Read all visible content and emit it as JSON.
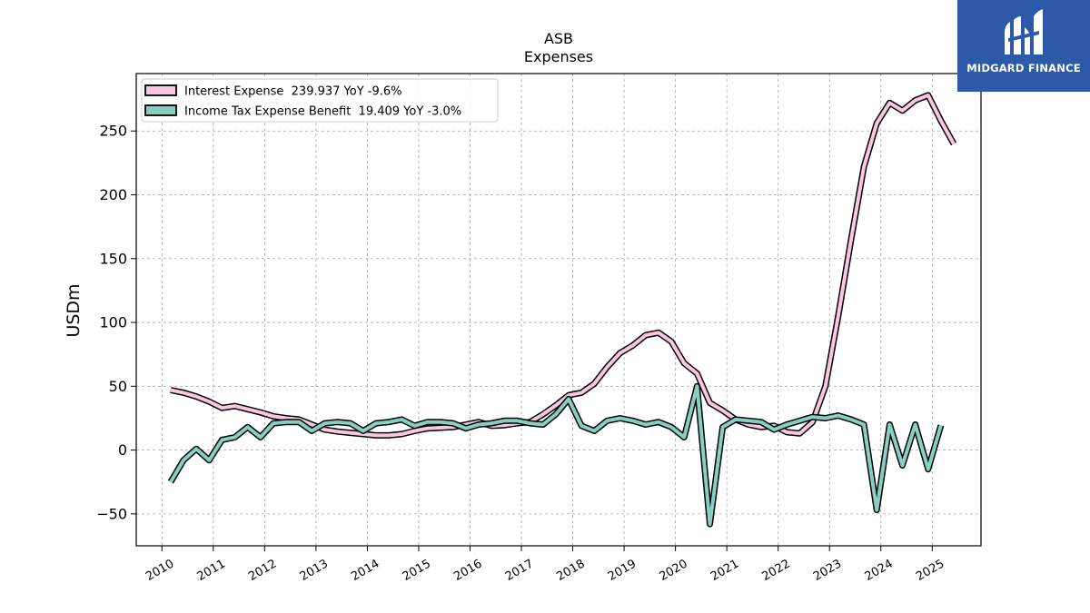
{
  "chart_data": {
    "type": "line",
    "title": "ASB",
    "subtitle": "Expenses",
    "ylabel": "USDm",
    "xlabel": "",
    "ylim": [
      -75,
      295
    ],
    "xlim": [
      2009.5,
      2025.95
    ],
    "yticks": [
      -50,
      0,
      50,
      100,
      150,
      200,
      250
    ],
    "ytick_labels": [
      "−50",
      "0",
      "50",
      "100",
      "150",
      "200",
      "250"
    ],
    "xticks": [
      2010,
      2011,
      2012,
      2013,
      2014,
      2015,
      2016,
      2017,
      2018,
      2019,
      2020,
      2021,
      2022,
      2023,
      2024,
      2025
    ],
    "xtick_labels": [
      "2010",
      "2011",
      "2012",
      "2013",
      "2014",
      "2015",
      "2016",
      "2017",
      "2018",
      "2019",
      "2020",
      "2021",
      "2022",
      "2023",
      "2024",
      "2025"
    ],
    "grid": true,
    "legend_position": "upper-left",
    "series": [
      {
        "name": "Interest Expense  239.937 YoY -9.6%",
        "color": "#f9c7df",
        "points": [
          [
            2010.17,
            47
          ],
          [
            2010.42,
            45
          ],
          [
            2010.67,
            42
          ],
          [
            2010.92,
            38
          ],
          [
            2011.17,
            33
          ],
          [
            2011.42,
            34.5
          ],
          [
            2011.67,
            32
          ],
          [
            2011.92,
            29.5
          ],
          [
            2012.17,
            26.5
          ],
          [
            2012.42,
            25
          ],
          [
            2012.67,
            24
          ],
          [
            2012.92,
            20
          ],
          [
            2013.17,
            16
          ],
          [
            2013.42,
            14.5
          ],
          [
            2013.67,
            13.5
          ],
          [
            2013.92,
            12.5
          ],
          [
            2014.17,
            11.5
          ],
          [
            2014.42,
            11.5
          ],
          [
            2014.67,
            12.5
          ],
          [
            2014.92,
            15
          ],
          [
            2015.17,
            17
          ],
          [
            2015.42,
            17.5
          ],
          [
            2015.67,
            18
          ],
          [
            2015.92,
            20
          ],
          [
            2016.17,
            22
          ],
          [
            2016.42,
            19
          ],
          [
            2016.67,
            19.5
          ],
          [
            2016.92,
            21
          ],
          [
            2017.17,
            22
          ],
          [
            2017.42,
            28
          ],
          [
            2017.67,
            35
          ],
          [
            2017.92,
            43
          ],
          [
            2018.17,
            45
          ],
          [
            2018.42,
            52
          ],
          [
            2018.67,
            65
          ],
          [
            2018.92,
            76
          ],
          [
            2019.17,
            82
          ],
          [
            2019.42,
            90
          ],
          [
            2019.67,
            92
          ],
          [
            2019.92,
            85
          ],
          [
            2020.17,
            68
          ],
          [
            2020.42,
            60
          ],
          [
            2020.67,
            37
          ],
          [
            2020.92,
            31
          ],
          [
            2021.17,
            24
          ],
          [
            2021.42,
            20
          ],
          [
            2021.67,
            18
          ],
          [
            2021.92,
            19
          ],
          [
            2022.17,
            14
          ],
          [
            2022.42,
            13
          ],
          [
            2022.67,
            22
          ],
          [
            2022.92,
            50
          ],
          [
            2023.17,
            105
          ],
          [
            2023.42,
            165
          ],
          [
            2023.67,
            222
          ],
          [
            2023.92,
            256
          ],
          [
            2024.17,
            272
          ],
          [
            2024.42,
            266
          ],
          [
            2024.67,
            274
          ],
          [
            2024.92,
            278
          ],
          [
            2025.17,
            258
          ],
          [
            2025.42,
            239.9
          ]
        ]
      },
      {
        "name": "Income Tax Expense Benefit  19.409 YoY -3.0%",
        "color": "#86cfc1",
        "points": [
          [
            2010.17,
            -25
          ],
          [
            2010.42,
            -8
          ],
          [
            2010.67,
            1
          ],
          [
            2010.92,
            -8
          ],
          [
            2011.17,
            8
          ],
          [
            2011.42,
            10
          ],
          [
            2011.67,
            18
          ],
          [
            2011.92,
            10
          ],
          [
            2012.17,
            21
          ],
          [
            2012.42,
            22
          ],
          [
            2012.67,
            22
          ],
          [
            2012.92,
            15
          ],
          [
            2013.17,
            21
          ],
          [
            2013.42,
            22
          ],
          [
            2013.67,
            21
          ],
          [
            2013.92,
            15
          ],
          [
            2014.17,
            21
          ],
          [
            2014.42,
            22
          ],
          [
            2014.67,
            24
          ],
          [
            2014.92,
            19
          ],
          [
            2015.17,
            22
          ],
          [
            2015.42,
            22
          ],
          [
            2015.67,
            21
          ],
          [
            2015.92,
            17
          ],
          [
            2016.17,
            20
          ],
          [
            2016.42,
            21
          ],
          [
            2016.67,
            23
          ],
          [
            2016.92,
            23
          ],
          [
            2017.17,
            21
          ],
          [
            2017.42,
            20
          ],
          [
            2017.67,
            28
          ],
          [
            2017.92,
            40
          ],
          [
            2018.17,
            19
          ],
          [
            2018.42,
            15
          ],
          [
            2018.67,
            23
          ],
          [
            2018.92,
            25
          ],
          [
            2019.17,
            23
          ],
          [
            2019.42,
            20
          ],
          [
            2019.67,
            22
          ],
          [
            2019.92,
            18
          ],
          [
            2020.17,
            10
          ],
          [
            2020.42,
            50
          ],
          [
            2020.67,
            -58
          ],
          [
            2020.92,
            18
          ],
          [
            2021.17,
            24
          ],
          [
            2021.42,
            23
          ],
          [
            2021.67,
            22
          ],
          [
            2021.92,
            16
          ],
          [
            2022.17,
            20
          ],
          [
            2022.42,
            23
          ],
          [
            2022.67,
            26
          ],
          [
            2022.92,
            25
          ],
          [
            2023.17,
            27
          ],
          [
            2023.42,
            24
          ],
          [
            2023.67,
            20
          ],
          [
            2023.92,
            -47
          ],
          [
            2024.17,
            20
          ],
          [
            2024.42,
            -12
          ],
          [
            2024.67,
            20
          ],
          [
            2024.92,
            -15
          ],
          [
            2025.17,
            19.4
          ]
        ]
      }
    ]
  },
  "branding": {
    "logo_text": "MIDGARD FINANCE",
    "logo_color": "#2c5aa8"
  }
}
